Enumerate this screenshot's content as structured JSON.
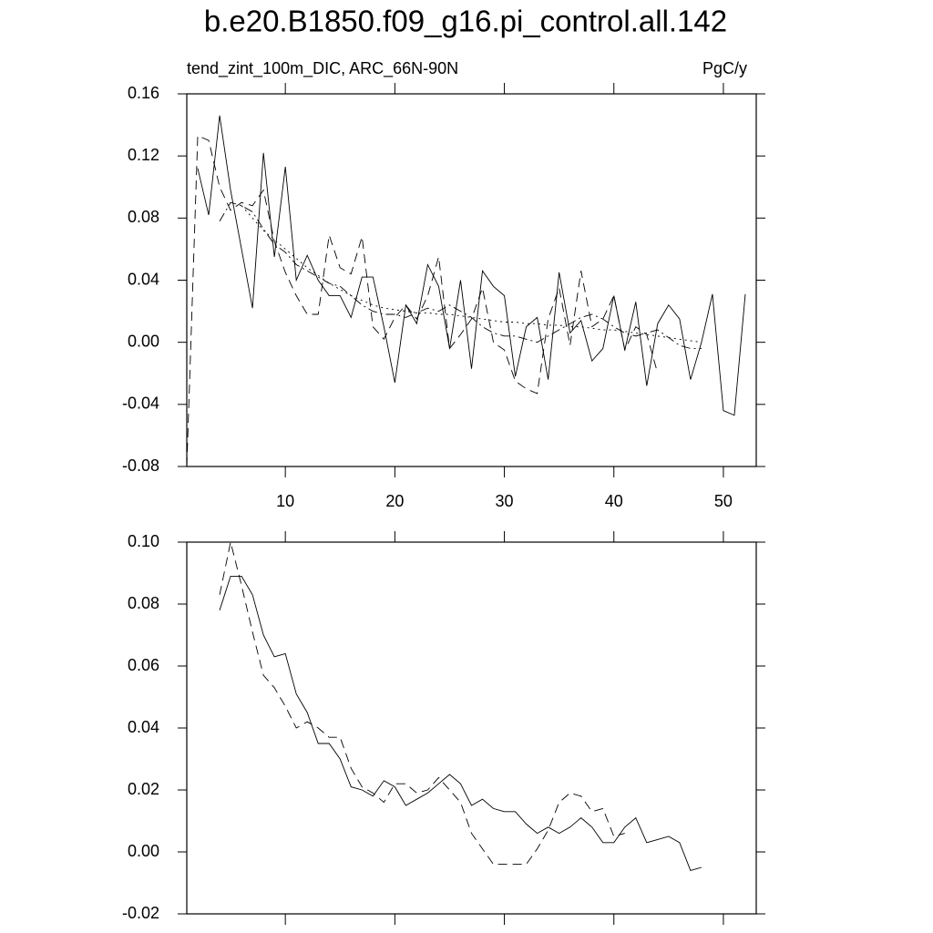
{
  "chart_data": [
    {
      "type": "line",
      "title": "b.e20.B1850.f09_g16.pi_control.all.142",
      "subtitle_left": "tend_zint_100m_DIC, ARC_66N-90N",
      "subtitle_right": "PgC/y",
      "xlim": [
        1,
        53
      ],
      "xticks": [
        10,
        20,
        30,
        40,
        50
      ],
      "xticklabels": true,
      "ylim": [
        -0.08,
        0.16
      ],
      "yticks": [
        -0.08,
        -0.04,
        {
          "value": 0,
          "label": "0.00"
        },
        0.04,
        0.08,
        0.12,
        0.16
      ],
      "series": [
        {
          "color": "#000000",
          "dash": "solid",
          "x": [
            2,
            3,
            4,
            5,
            6,
            7,
            8,
            9,
            10,
            11,
            12,
            13,
            14,
            15,
            16,
            17,
            18,
            19,
            20,
            21,
            22,
            23,
            24,
            25,
            26,
            27,
            28,
            29,
            30,
            31,
            32,
            33,
            34,
            35,
            36,
            37,
            38,
            39,
            40,
            41,
            42,
            43,
            44,
            45,
            46,
            47,
            48,
            49,
            50,
            51,
            52
          ],
          "values": [
            0.112,
            0.082,
            0.146,
            0.098,
            0.06,
            0.022,
            0.122,
            0.055,
            0.113,
            0.04,
            0.056,
            0.04,
            0.03,
            0.03,
            0.016,
            0.042,
            0.042,
            0.01,
            -0.026,
            0.024,
            0.012,
            0.05,
            0.036,
            -0.004,
            0.04,
            -0.017,
            0.046,
            0.036,
            0.03,
            -0.022,
            0.01,
            0.016,
            -0.024,
            0.045,
            0.006,
            0.014,
            -0.012,
            -0.004,
            0.03,
            -0.005,
            0.026,
            -0.028,
            0.012,
            0.024,
            0.015,
            -0.024,
            0,
            0.031,
            -0.044,
            -0.047,
            0.031
          ]
        },
        {
          "color": "#000000",
          "dash": "dashed",
          "x": [
            1,
            2,
            3,
            4,
            5,
            6,
            7,
            8,
            9,
            10,
            11,
            12,
            13,
            14,
            15,
            16,
            17,
            18,
            19,
            20,
            21,
            22,
            23,
            24,
            25,
            26,
            27,
            28,
            29,
            30,
            31,
            32,
            33,
            34,
            35,
            36,
            37,
            38,
            39,
            40,
            41,
            42,
            43,
            44
          ],
          "values": [
            -0.08,
            0.133,
            0.13,
            0.1,
            0.085,
            0.09,
            0.088,
            0.098,
            0.065,
            0.045,
            0.03,
            0.018,
            0.018,
            0.069,
            0.048,
            0.044,
            0.068,
            0.01,
            0.002,
            0.016,
            0.024,
            0.015,
            0.03,
            0.055,
            -0.004,
            0.005,
            0.015,
            0.035,
            0,
            -0.005,
            -0.025,
            -0.03,
            -0.033,
            0.015,
            0.035,
            -0.002,
            0.046,
            0.01,
            0.015,
            0.03,
            -0.005,
            0.01,
            0.005,
            -0.02
          ]
        },
        {
          "color": "#000000",
          "dash": "dashdot",
          "x": [
            4,
            5,
            6,
            7,
            8,
            9,
            10,
            11,
            12,
            13,
            14,
            15,
            16,
            17,
            18,
            19,
            20,
            21,
            22,
            23,
            24,
            25,
            26,
            27,
            28,
            29,
            30,
            31,
            32,
            33,
            34,
            35,
            36,
            37,
            38,
            39,
            40,
            41,
            42,
            43,
            44,
            45,
            46,
            47,
            48
          ],
          "values": [
            0.078,
            0.09,
            0.088,
            0.084,
            0.073,
            0.063,
            0.058,
            0.05,
            0.046,
            0.042,
            0.038,
            0.036,
            0.03,
            0.024,
            0.02,
            0.018,
            0.018,
            0.016,
            0.019,
            0.022,
            0.02,
            0.024,
            0.02,
            0.016,
            0.01,
            0.006,
            0.004,
            0.004,
            0.002,
            0,
            0.004,
            0.008,
            0.012,
            0.016,
            0.018,
            0.015,
            0.01,
            0.006,
            0.004,
            0.006,
            0.008,
            0.003,
            -0.002,
            -0.004,
            -0.004
          ]
        },
        {
          "color": "#000000",
          "dash": "dotted",
          "x": [
            6,
            7,
            8,
            9,
            10,
            11,
            12,
            13,
            14,
            15,
            16,
            17,
            18,
            19,
            20,
            21,
            22,
            23,
            24,
            25,
            26,
            27,
            28,
            29,
            30,
            31,
            32,
            33,
            34,
            35,
            36,
            37,
            38,
            39,
            40,
            41,
            42,
            43,
            44,
            45,
            46,
            47,
            48
          ],
          "values": [
            0.088,
            0.08,
            0.072,
            0.066,
            0.06,
            0.054,
            0.048,
            0.043,
            0.038,
            0.034,
            0.03,
            0.027,
            0.024,
            0.022,
            0.021,
            0.02,
            0.019,
            0.019,
            0.018,
            0.018,
            0.017,
            0.016,
            0.015,
            0.014,
            0.013,
            0.013,
            0.012,
            0.012,
            0.011,
            0.011,
            0.01,
            0.01,
            0.009,
            0.008,
            0.008,
            0.007,
            0.006,
            0.005,
            0.004,
            0.003,
            0.002,
            0.001,
            0
          ]
        }
      ]
    },
    {
      "type": "line",
      "xlim": [
        1,
        53
      ],
      "xticks": [
        10,
        20,
        30,
        40,
        50
      ],
      "xticklabels": false,
      "ylim": [
        -0.02,
        0.1
      ],
      "yticks": [
        -0.02,
        {
          "value": 0,
          "label": "0.00"
        },
        0.02,
        0.04,
        0.06,
        0.08,
        {
          "value": 0.1,
          "label": "0.10"
        }
      ],
      "series": [
        {
          "color": "#000000",
          "dash": "solid",
          "x": [
            4,
            5,
            6,
            7,
            8,
            9,
            10,
            11,
            12,
            13,
            14,
            15,
            16,
            17,
            18,
            19,
            20,
            21,
            22,
            23,
            24,
            25,
            26,
            27,
            28,
            29,
            30,
            31,
            32,
            33,
            34,
            35,
            36,
            37,
            38,
            39,
            40,
            41,
            42,
            43,
            44,
            45,
            46,
            47,
            48
          ],
          "values": [
            0.078,
            0.089,
            0.089,
            0.083,
            0.07,
            0.063,
            0.064,
            0.051,
            0.045,
            0.035,
            0.035,
            0.03,
            0.021,
            0.02,
            0.018,
            0.023,
            0.021,
            0.015,
            0.017,
            0.019,
            0.022,
            0.025,
            0.022,
            0.015,
            0.017,
            0.014,
            0.013,
            0.013,
            0.009,
            0.006,
            0.008,
            0.006,
            0.008,
            0.011,
            0.008,
            0.003,
            0.003,
            0.008,
            0.011,
            0.003,
            0.004,
            0.005,
            0.003,
            -0.006,
            -0.005
          ]
        },
        {
          "color": "#000000",
          "dash": "dashed",
          "x": [
            4,
            5,
            6,
            7,
            8,
            9,
            10,
            11,
            12,
            13,
            14,
            15,
            16,
            17,
            18,
            19,
            20,
            21,
            22,
            23,
            24,
            25,
            26,
            27,
            28,
            29,
            30,
            31,
            32,
            33,
            34,
            35,
            36,
            37,
            38,
            39,
            40,
            41
          ],
          "values": [
            0.083,
            0.1,
            0.086,
            0.071,
            0.057,
            0.053,
            0.047,
            0.04,
            0.042,
            0.04,
            0.037,
            0.037,
            0.027,
            0.021,
            0.019,
            0.016,
            0.022,
            0.022,
            0.019,
            0.02,
            0.024,
            0.02,
            0.016,
            0.006,
            0.001,
            -0.004,
            -0.004,
            -0.004,
            -0.004,
            0.001,
            0.007,
            0.016,
            0.019,
            0.018,
            0.013,
            0.014,
            0.005,
            0.006
          ]
        }
      ]
    }
  ]
}
